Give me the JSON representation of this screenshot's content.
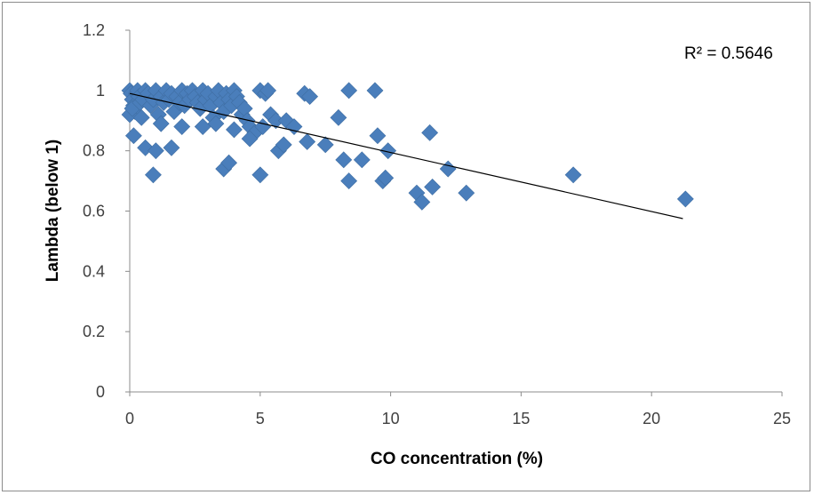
{
  "chart_data": {
    "type": "scatter",
    "xlabel": "CO concentration (%)",
    "ylabel": "Lambda (below 1)",
    "xlim": [
      0,
      25
    ],
    "ylim": [
      0,
      1.2
    ],
    "x_ticks": [
      "0",
      "5",
      "10",
      "15",
      "20",
      "25"
    ],
    "y_ticks": [
      "0",
      "0.2",
      "0.4",
      "0.6",
      "0.8",
      "1",
      "1.2"
    ],
    "marker_color": "#4a7ebb",
    "trendline": {
      "type": "linear",
      "x": [
        0,
        21.2
      ],
      "y": [
        0.99,
        0.575
      ],
      "r_squared_label": "R² = 0.5646"
    },
    "series": [
      {
        "points": [
          [
            0.0,
            1.0
          ],
          [
            0.05,
            0.99
          ],
          [
            0.1,
            0.97
          ],
          [
            0.15,
            0.95
          ],
          [
            0.2,
            0.93
          ],
          [
            0.0,
            0.92
          ],
          [
            0.1,
            0.94
          ],
          [
            0.25,
            0.99
          ],
          [
            0.3,
            1.0
          ],
          [
            0.35,
            0.98
          ],
          [
            0.4,
            0.96
          ],
          [
            0.45,
            0.91
          ],
          [
            0.5,
            0.97
          ],
          [
            0.6,
            1.0
          ],
          [
            0.7,
            0.99
          ],
          [
            0.8,
            0.95
          ],
          [
            0.9,
            0.97
          ],
          [
            1.0,
            1.0
          ],
          [
            1.1,
            0.92
          ],
          [
            1.2,
            0.98
          ],
          [
            1.3,
            0.96
          ],
          [
            1.4,
            1.0
          ],
          [
            1.5,
            0.97
          ],
          [
            1.6,
            0.99
          ],
          [
            1.7,
            0.93
          ],
          [
            1.8,
            0.98
          ],
          [
            1.9,
            0.96
          ],
          [
            2.0,
            1.0
          ],
          [
            2.1,
            0.95
          ],
          [
            2.2,
            0.99
          ],
          [
            2.3,
            0.97
          ],
          [
            2.4,
            1.0
          ],
          [
            2.5,
            0.98
          ],
          [
            2.6,
            0.96
          ],
          [
            2.7,
            0.94
          ],
          [
            2.8,
            1.0
          ],
          [
            2.9,
            0.97
          ],
          [
            3.0,
            0.99
          ],
          [
            3.1,
            0.95
          ],
          [
            3.2,
            0.91
          ],
          [
            3.3,
            0.98
          ],
          [
            3.4,
            1.0
          ],
          [
            3.5,
            0.96
          ],
          [
            3.6,
            0.93
          ],
          [
            3.7,
            0.99
          ],
          [
            3.8,
            0.97
          ],
          [
            3.9,
            0.95
          ],
          [
            4.0,
            1.0
          ],
          [
            4.1,
            0.98
          ],
          [
            4.2,
            0.96
          ],
          [
            4.3,
            0.92
          ],
          [
            4.4,
            0.94
          ],
          [
            4.5,
            0.9
          ],
          [
            4.6,
            0.88
          ],
          [
            4.8,
            0.86
          ],
          [
            0.15,
            0.85
          ],
          [
            0.6,
            0.81
          ],
          [
            1.0,
            0.8
          ],
          [
            1.6,
            0.81
          ],
          [
            0.9,
            0.72
          ],
          [
            1.2,
            0.89
          ],
          [
            2.0,
            0.88
          ],
          [
            2.8,
            0.88
          ],
          [
            3.3,
            0.89
          ],
          [
            3.6,
            0.74
          ],
          [
            3.8,
            0.76
          ],
          [
            4.0,
            0.87
          ],
          [
            4.6,
            0.84
          ],
          [
            5.0,
            1.0
          ],
          [
            5.2,
            0.99
          ],
          [
            5.3,
            1.0
          ],
          [
            5.0,
            0.72
          ],
          [
            5.1,
            0.88
          ],
          [
            5.4,
            0.92
          ],
          [
            5.6,
            0.9
          ],
          [
            5.7,
            0.8
          ],
          [
            5.9,
            0.82
          ],
          [
            6.0,
            0.9
          ],
          [
            6.3,
            0.88
          ],
          [
            6.7,
            0.99
          ],
          [
            6.9,
            0.98
          ],
          [
            6.8,
            0.83
          ],
          [
            7.5,
            0.82
          ],
          [
            8.0,
            0.91
          ],
          [
            8.2,
            0.77
          ],
          [
            8.4,
            0.7
          ],
          [
            8.4,
            1.0
          ],
          [
            8.9,
            0.77
          ],
          [
            9.4,
            1.0
          ],
          [
            9.5,
            0.85
          ],
          [
            9.7,
            0.7
          ],
          [
            9.8,
            0.71
          ],
          [
            9.9,
            0.8
          ],
          [
            11.0,
            0.66
          ],
          [
            11.2,
            0.63
          ],
          [
            11.5,
            0.86
          ],
          [
            11.6,
            0.68
          ],
          [
            12.2,
            0.74
          ],
          [
            12.9,
            0.66
          ],
          [
            17.0,
            0.72
          ],
          [
            21.3,
            0.64
          ]
        ]
      }
    ]
  }
}
